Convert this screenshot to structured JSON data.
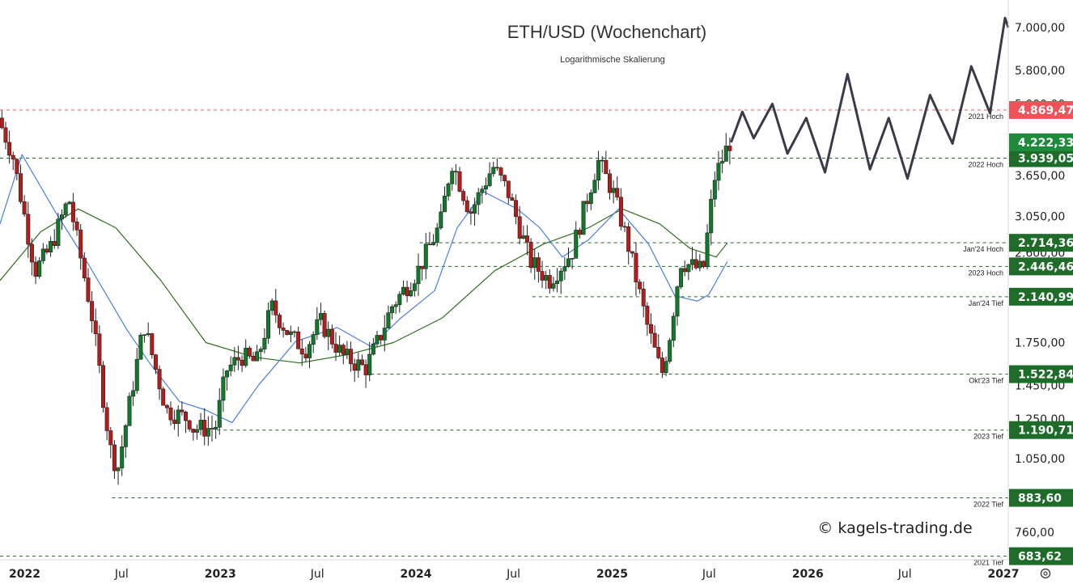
{
  "colors": {
    "up": "#0f7a2a",
    "down": "#b71c1c",
    "wick": "#222222",
    "ma_fast": "#4a7fe0",
    "ma_slow": "#2f6e1e",
    "level_green": "#1e6b2a",
    "level_red": "#e15b5b",
    "tag_green": "#1e6b2a",
    "tag_red": "#f0525a",
    "tag_price": "#1e8a3a",
    "projection": "#3a3a48"
  },
  "chart_data": {
    "type": "candlestick",
    "title": "ETH/USD (Wochenchart)",
    "subtitle": "Logarithmische Skalierung",
    "y_scale": "log",
    "ylim": [
      673,
      7900
    ],
    "xlim": [
      "2021-11-16",
      "2027-01-10"
    ],
    "y_ticks": [
      "7.000,00",
      "5.800,00",
      "5.000,00",
      "3.650,00",
      "3.050,00",
      "2.600,00",
      "1.750,00",
      "1.450,00",
      "1.250,00",
      "1.050,00",
      "880,00",
      "760,00"
    ],
    "y_tick_values": [
      7000,
      5800,
      5000,
      3650,
      3050,
      2600,
      1750,
      1450,
      1250,
      1050,
      880,
      760
    ],
    "x_ticks": [
      {
        "label": "2022",
        "date": "2022-01-01",
        "bold": true
      },
      {
        "label": "Jul",
        "date": "2022-07-01",
        "bold": false
      },
      {
        "label": "2023",
        "date": "2023-01-01",
        "bold": true
      },
      {
        "label": "Jul",
        "date": "2023-07-01",
        "bold": false
      },
      {
        "label": "2024",
        "date": "2024-01-01",
        "bold": true
      },
      {
        "label": "Jul",
        "date": "2024-07-01",
        "bold": false
      },
      {
        "label": "2025",
        "date": "2025-01-01",
        "bold": true
      },
      {
        "label": "Jul",
        "date": "2025-07-01",
        "bold": false
      },
      {
        "label": "2026",
        "date": "2026-01-01",
        "bold": true
      },
      {
        "label": "Jul",
        "date": "2026-07-01",
        "bold": false
      },
      {
        "label": "2027",
        "date": "2027-01-01",
        "bold": true
      }
    ],
    "levels": [
      {
        "name": "2021 Hoch",
        "value": 4869.47,
        "label": "4.869,47",
        "style": "red",
        "start": "2021-11-16"
      },
      {
        "name": "2022 Hoch",
        "value": 3939.05,
        "label": "3.939,05",
        "style": "green",
        "start": "2021-11-16"
      },
      {
        "name": "Jan'24 Hoch",
        "value": 2714.36,
        "label": "2.714,36",
        "style": "green",
        "start": "2024-01-08"
      },
      {
        "name": "2023 Hoch",
        "value": 2446.46,
        "label": "2.446,46",
        "style": "green",
        "start": "2024-01-01"
      },
      {
        "name": "Jan'24 Tief",
        "value": 2140.99,
        "label": "2.140,99",
        "style": "green",
        "start": "2024-08-05"
      },
      {
        "name": "Okt'23 Tief",
        "value": 1522.84,
        "label": "1.522,84",
        "style": "green",
        "start": "2023-10-09"
      },
      {
        "name": "2023 Tief",
        "value": 1190.71,
        "label": "1.190,71",
        "style": "green",
        "start": "2022-12-26"
      },
      {
        "name": "2022 Tief",
        "value": 883.6,
        "label": "883,60",
        "style": "green",
        "start": "2022-06-13"
      },
      {
        "name": "2021 Tief",
        "value": 683.62,
        "label": "683,62",
        "style": "green",
        "start": "2021-11-16"
      }
    ],
    "last_price": {
      "value": 4222.33,
      "label": "4.222,33"
    },
    "anchors": [
      [
        "2021-11-16",
        4700
      ],
      [
        "2021-12-13",
        4000
      ],
      [
        "2022-01-24",
        2400
      ],
      [
        "2022-02-21",
        2650
      ],
      [
        "2022-03-28",
        3300
      ],
      [
        "2022-05-09",
        2000
      ],
      [
        "2022-06-13",
        1100
      ],
      [
        "2022-06-27",
        1000
      ],
      [
        "2022-08-15",
        1900
      ],
      [
        "2022-09-26",
        1300
      ],
      [
        "2022-11-07",
        1250
      ],
      [
        "2022-11-14",
        1200
      ],
      [
        "2022-12-26",
        1200
      ],
      [
        "2023-01-16",
        1550
      ],
      [
        "2023-02-13",
        1650
      ],
      [
        "2023-03-13",
        1600
      ],
      [
        "2023-04-10",
        2050
      ],
      [
        "2023-05-15",
        1800
      ],
      [
        "2023-06-12",
        1700
      ],
      [
        "2023-07-10",
        1920
      ],
      [
        "2023-08-21",
        1650
      ],
      [
        "2023-10-02",
        1560
      ],
      [
        "2023-10-30",
        1800
      ],
      [
        "2023-11-20",
        2050
      ],
      [
        "2024-01-08",
        2400
      ],
      [
        "2024-02-19",
        2950
      ],
      [
        "2024-03-11",
        3900
      ],
      [
        "2024-04-15",
        3100
      ],
      [
        "2024-05-27",
        3800
      ],
      [
        "2024-06-24",
        3400
      ],
      [
        "2024-08-05",
        2500
      ],
      [
        "2024-09-09",
        2300
      ],
      [
        "2024-10-21",
        2600
      ],
      [
        "2024-12-09",
        3900
      ],
      [
        "2025-01-06",
        3400
      ],
      [
        "2025-02-03",
        2700
      ],
      [
        "2025-03-10",
        1900
      ],
      [
        "2025-04-07",
        1520
      ],
      [
        "2025-04-21",
        1780
      ],
      [
        "2025-05-12",
        2500
      ],
      [
        "2025-06-23",
        2400
      ],
      [
        "2025-07-14",
        3600
      ],
      [
        "2025-08-11",
        4222.33
      ]
    ],
    "ma_fast": [
      [
        "2021-11-16",
        2950
      ],
      [
        "2021-12-27",
        4000
      ],
      [
        "2022-02-28",
        3100
      ],
      [
        "2022-05-02",
        2450
      ],
      [
        "2022-07-11",
        1850
      ],
      [
        "2022-08-22",
        1600
      ],
      [
        "2022-10-17",
        1350
      ],
      [
        "2022-12-05",
        1300
      ],
      [
        "2023-01-23",
        1230
      ],
      [
        "2023-03-13",
        1450
      ],
      [
        "2023-05-22",
        1760
      ],
      [
        "2023-08-07",
        1870
      ],
      [
        "2023-10-09",
        1720
      ],
      [
        "2023-12-04",
        1950
      ],
      [
        "2024-02-05",
        2200
      ],
      [
        "2024-03-18",
        2900
      ],
      [
        "2024-05-06",
        3400
      ],
      [
        "2024-07-08",
        3150
      ],
      [
        "2024-08-19",
        2900
      ],
      [
        "2024-09-30",
        2550
      ],
      [
        "2024-11-18",
        2750
      ],
      [
        "2025-01-13",
        3150
      ],
      [
        "2025-03-10",
        2700
      ],
      [
        "2025-04-28",
        2150
      ],
      [
        "2025-06-09",
        2100
      ],
      [
        "2025-06-30",
        2160
      ],
      [
        "2025-08-04",
        2500
      ]
    ],
    "ma_slow": [
      [
        "2021-11-16",
        2300
      ],
      [
        "2022-01-31",
        2850
      ],
      [
        "2022-04-11",
        3150
      ],
      [
        "2022-06-20",
        2900
      ],
      [
        "2022-09-12",
        2300
      ],
      [
        "2022-12-05",
        1750
      ],
      [
        "2023-03-06",
        1640
      ],
      [
        "2023-05-29",
        1600
      ],
      [
        "2023-08-28",
        1660
      ],
      [
        "2023-11-20",
        1750
      ],
      [
        "2024-02-19",
        1950
      ],
      [
        "2024-05-27",
        2400
      ],
      [
        "2024-08-26",
        2700
      ],
      [
        "2024-11-18",
        2900
      ],
      [
        "2025-01-20",
        3150
      ],
      [
        "2025-03-31",
        2950
      ],
      [
        "2025-05-26",
        2650
      ],
      [
        "2025-07-14",
        2550
      ],
      [
        "2025-08-04",
        2714
      ]
    ],
    "projection": [
      [
        "2025-08-11",
        4222
      ],
      [
        "2025-09-01",
        4830
      ],
      [
        "2025-09-22",
        4300
      ],
      [
        "2025-10-27",
        5000
      ],
      [
        "2025-11-24",
        4020
      ],
      [
        "2025-12-29",
        4700
      ],
      [
        "2026-02-02",
        3700
      ],
      [
        "2026-03-16",
        5700
      ],
      [
        "2026-04-27",
        3750
      ],
      [
        "2026-06-01",
        4700
      ],
      [
        "2026-07-06",
        3600
      ],
      [
        "2026-08-17",
        5200
      ],
      [
        "2026-09-28",
        4200
      ],
      [
        "2026-11-02",
        5900
      ],
      [
        "2026-12-07",
        4800
      ],
      [
        "2027-01-04",
        7300
      ],
      [
        "2027-01-10",
        7000
      ]
    ]
  },
  "copyright": "© kagels-trading.de",
  "settings_icon": "gear-icon"
}
